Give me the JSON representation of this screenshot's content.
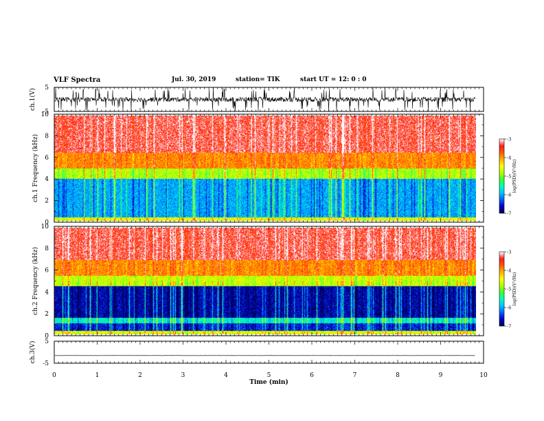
{
  "header": {
    "title": "VLF Spectra",
    "date": "Jul. 30, 2019",
    "station": "station= TIK",
    "start": "start UT = 12: 0 : 0"
  },
  "colors": {
    "trace": "#000000",
    "colormap": [
      "#000050",
      "#0000c8",
      "#0064ff",
      "#00c8ff",
      "#00ffb4",
      "#3cff3c",
      "#b4ff00",
      "#ffff00",
      "#ffb400",
      "#ff5a00",
      "#ff1e1e",
      "#ffffff"
    ]
  },
  "chart_data": [
    {
      "type": "line",
      "ylabel": "ch.1(V)",
      "ylim": [
        -5,
        5
      ],
      "yticks": [
        "5",
        "-5"
      ],
      "description_values": {
        "baseline": 0,
        "typical_spread": 1,
        "spike_max": 5,
        "spike_min": -5
      }
    },
    {
      "type": "heatmap",
      "ylabel": "ch.1 Frequency (kHz)",
      "ylim": [
        0,
        10
      ],
      "yticks": [
        "0",
        "2",
        "4",
        "6",
        "8",
        "10"
      ],
      "colorbar": {
        "label": "log(PSD)(V²/Hz)",
        "range": [
          -7,
          -3
        ],
        "ticks": [
          "-3",
          "-4",
          "-5",
          "-6",
          "-7"
        ]
      },
      "bands": [
        {
          "kHz_from": 0,
          "kHz_to": 0.3,
          "log_psd": -4.5
        },
        {
          "kHz_from": 0.3,
          "kHz_to": 4,
          "log_psd": -6.0
        },
        {
          "kHz_from": 4,
          "kHz_to": 5,
          "log_psd": -4.8
        },
        {
          "kHz_from": 5,
          "kHz_to": 6.5,
          "log_psd": -3.9
        },
        {
          "kHz_from": 6.5,
          "kHz_to": 10,
          "log_psd": -3.3
        }
      ]
    },
    {
      "type": "heatmap",
      "ylabel": "ch.2 Frequency (kHz)",
      "ylim": [
        0,
        10
      ],
      "yticks": [
        "0",
        "2",
        "4",
        "6",
        "8",
        "10"
      ],
      "colorbar": {
        "label": "log(PSD)(V²/Hz)",
        "range": [
          -7,
          -3
        ],
        "ticks": [
          "-3",
          "-4",
          "-5",
          "-6",
          "-7"
        ]
      },
      "bands": [
        {
          "kHz_from": 0,
          "kHz_to": 0.3,
          "log_psd": -4.5
        },
        {
          "kHz_from": 0.3,
          "kHz_to": 1.0,
          "log_psd": -6.5
        },
        {
          "kHz_from": 1.0,
          "kHz_to": 1.5,
          "log_psd": -5.6
        },
        {
          "kHz_from": 1.5,
          "kHz_to": 4.5,
          "log_psd": -6.7
        },
        {
          "kHz_from": 4.5,
          "kHz_to": 5.5,
          "log_psd": -4.7
        },
        {
          "kHz_from": 5.5,
          "kHz_to": 7,
          "log_psd": -3.9
        },
        {
          "kHz_from": 7,
          "kHz_to": 10,
          "log_psd": -3.3
        }
      ]
    },
    {
      "type": "line",
      "ylabel": "ch.3(V)",
      "ylim": [
        -5,
        5
      ],
      "yticks": [
        "5",
        "-5"
      ],
      "description_values": {
        "baseline": -1.5,
        "typical_spread": 0.05
      }
    }
  ],
  "xaxis": {
    "label": "Time (min)",
    "xlim": [
      0,
      10
    ],
    "ticks": [
      "0",
      "1",
      "2",
      "3",
      "4",
      "5",
      "6",
      "7",
      "8",
      "9",
      "10"
    ],
    "data_end": 9.8
  }
}
